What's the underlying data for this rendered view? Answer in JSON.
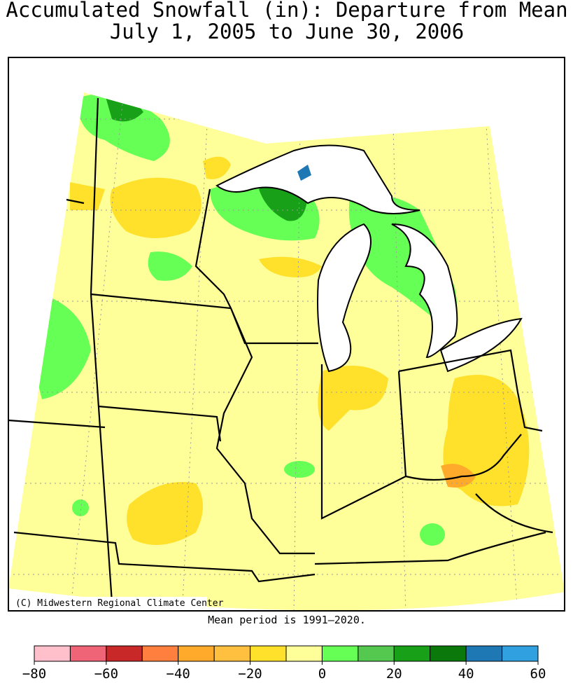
{
  "header": {
    "title": "Accumulated Snowfall (in): Departure from Mean",
    "subtitle": "July 1, 2005 to June 30, 2006"
  },
  "map": {
    "credit": "(C) Midwestern Regional Climate Center"
  },
  "footnote": "Mean period is 1991–2020.",
  "legend": {
    "bins": [
      -80,
      -70,
      -60,
      -50,
      -40,
      -30,
      -20,
      -10,
      0,
      10,
      20,
      30,
      40,
      50,
      60
    ],
    "colors": [
      "#ffc0cb",
      "#f06478",
      "#c82828",
      "#ff7f3f",
      "#ffaa2a",
      "#ffc040",
      "#ffe02a",
      "#ffff99",
      "#66ff55",
      "#55c850",
      "#18a018",
      "#0a780a",
      "#1e78b4",
      "#30a0e0"
    ],
    "ticks": [
      {
        "value": -80,
        "label": "−80"
      },
      {
        "value": -60,
        "label": "−60"
      },
      {
        "value": -40,
        "label": "−40"
      },
      {
        "value": -20,
        "label": "−20"
      },
      0,
      20,
      40,
      60
    ]
  }
}
